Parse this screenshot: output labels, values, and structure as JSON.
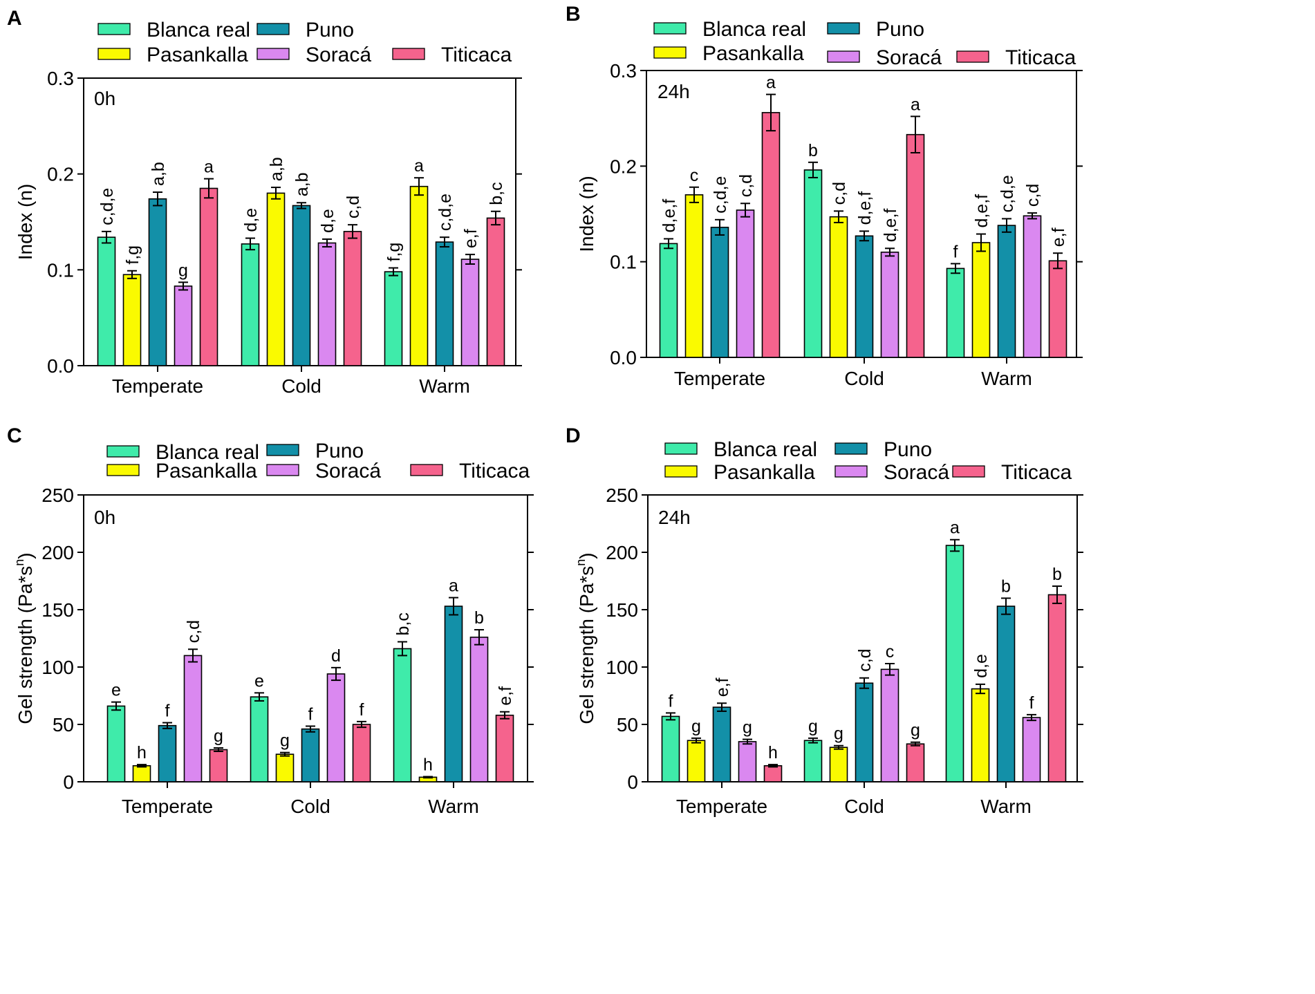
{
  "legend": {
    "labels": [
      "Blanca real",
      "Puno",
      "Pasankalla",
      "Soracá",
      "Titicaca"
    ]
  },
  "chart_data": [
    {
      "panel": "A",
      "type": "bar",
      "time_label": "0h",
      "ylabel": "Index (n)",
      "ylim": [
        0,
        0.3
      ],
      "yticks": [
        "0.0",
        "0.1",
        "0.2",
        "0.3"
      ],
      "categories": [
        "Temperate",
        "Cold",
        "Warm"
      ],
      "series": [
        {
          "name": "Blanca real",
          "color": "#3FEBAA",
          "values": [
            0.134,
            0.127,
            0.098
          ],
          "errors": [
            0.006,
            0.006,
            0.004
          ],
          "labels": [
            "c,d,e",
            "d,e",
            "f,g"
          ]
        },
        {
          "name": "Pasankalla",
          "color": "#FAFA00",
          "values": [
            0.095,
            0.18,
            0.187
          ],
          "errors": [
            0.004,
            0.006,
            0.009
          ],
          "labels": [
            "f,g",
            "a,b",
            "a"
          ]
        },
        {
          "name": "Puno",
          "color": "#1390A8",
          "values": [
            0.174,
            0.167,
            0.129
          ],
          "errors": [
            0.007,
            0.003,
            0.005
          ],
          "labels": [
            "a,b",
            "a,b",
            "c,d,e"
          ]
        },
        {
          "name": "Soracá",
          "color": "#DA88F0",
          "values": [
            0.083,
            0.128,
            0.111
          ],
          "errors": [
            0.004,
            0.004,
            0.005
          ],
          "labels": [
            "g",
            "d,e",
            "e,f"
          ]
        },
        {
          "name": "Titicaca",
          "color": "#F5638D",
          "values": [
            0.185,
            0.14,
            0.154
          ],
          "errors": [
            0.01,
            0.007,
            0.007
          ],
          "labels": [
            "a",
            "c,d",
            "b,c"
          ]
        }
      ]
    },
    {
      "panel": "B",
      "type": "bar",
      "time_label": "24h",
      "ylabel": "Index (n)",
      "ylim": [
        0,
        0.3
      ],
      "yticks": [
        "0.0",
        "0.1",
        "0.2",
        "0.3"
      ],
      "categories": [
        "Temperate",
        "Cold",
        "Warm"
      ],
      "series": [
        {
          "name": "Blanca real",
          "color": "#3FEBAA",
          "values": [
            0.119,
            0.196,
            0.093
          ],
          "errors": [
            0.005,
            0.008,
            0.005
          ],
          "labels": [
            "d,e,f",
            "b",
            "f"
          ]
        },
        {
          "name": "Pasankalla",
          "color": "#FAFA00",
          "values": [
            0.17,
            0.147,
            0.12
          ],
          "errors": [
            0.008,
            0.006,
            0.009
          ],
          "labels": [
            "c",
            "c,d",
            "d,e,f"
          ]
        },
        {
          "name": "Puno",
          "color": "#1390A8",
          "values": [
            0.136,
            0.127,
            0.138
          ],
          "errors": [
            0.008,
            0.005,
            0.007
          ],
          "labels": [
            "c,d,e",
            "d,e,f",
            "c,d,e"
          ]
        },
        {
          "name": "Soracá",
          "color": "#DA88F0",
          "values": [
            0.154,
            0.11,
            0.148
          ],
          "errors": [
            0.007,
            0.004,
            0.003
          ],
          "labels": [
            "c,d",
            "d,e,f",
            "c,d"
          ]
        },
        {
          "name": "Titicaca",
          "color": "#F5638D",
          "values": [
            0.256,
            0.233,
            0.101
          ],
          "errors": [
            0.019,
            0.019,
            0.008
          ],
          "labels": [
            "a",
            "a",
            "e,f"
          ]
        }
      ]
    },
    {
      "panel": "C",
      "type": "bar",
      "time_label": "0h",
      "ylabel": "Gel strength  (Pa*s",
      "ylabel_sup": "n",
      "ylabel_end": ")",
      "ylim": [
        0,
        250
      ],
      "yticks": [
        "0",
        "50",
        "100",
        "150",
        "200",
        "250"
      ],
      "categories": [
        "Temperate",
        "Cold",
        "Warm"
      ],
      "series": [
        {
          "name": "Blanca real",
          "color": "#3FEBAA",
          "values": [
            66,
            74,
            116
          ],
          "errors": [
            3.5,
            3.5,
            6
          ],
          "labels": [
            "e",
            "e",
            "b,c"
          ]
        },
        {
          "name": "Pasankalla",
          "color": "#FAFA00",
          "values": [
            14,
            24,
            4
          ],
          "errors": [
            1,
            1.5,
            0.5
          ],
          "labels": [
            "h",
            "g",
            "h"
          ]
        },
        {
          "name": "Puno",
          "color": "#1390A8",
          "values": [
            49,
            46,
            153
          ],
          "errors": [
            2.5,
            2.5,
            7.5
          ],
          "labels": [
            "f",
            "f",
            "a"
          ]
        },
        {
          "name": "Soracá",
          "color": "#DA88F0",
          "values": [
            110,
            94,
            126
          ],
          "errors": [
            5.5,
            5.5,
            6.5
          ],
          "labels": [
            "c,d",
            "d",
            "b"
          ]
        },
        {
          "name": "Titicaca",
          "color": "#F5638D",
          "values": [
            28,
            50,
            58
          ],
          "errors": [
            1.5,
            2.5,
            3
          ],
          "labels": [
            "g",
            "f",
            "e,f"
          ]
        }
      ]
    },
    {
      "panel": "D",
      "type": "bar",
      "time_label": "24h",
      "ylabel": "Gel strength  (Pa*s",
      "ylabel_sup": "n",
      "ylabel_end": ")",
      "ylim": [
        0,
        250
      ],
      "yticks": [
        "0",
        "50",
        "100",
        "150",
        "200",
        "250"
      ],
      "categories": [
        "Temperate",
        "Cold",
        "Warm"
      ],
      "series": [
        {
          "name": "Blanca real",
          "color": "#3FEBAA",
          "values": [
            57,
            36,
            206
          ],
          "errors": [
            3,
            2,
            5
          ],
          "labels": [
            "f",
            "g",
            "a"
          ]
        },
        {
          "name": "Pasankalla",
          "color": "#FAFA00",
          "values": [
            36,
            30,
            81
          ],
          "errors": [
            2,
            1.5,
            4
          ],
          "labels": [
            "g",
            "g",
            "d,e"
          ]
        },
        {
          "name": "Puno",
          "color": "#1390A8",
          "values": [
            65,
            86,
            153
          ],
          "errors": [
            3.5,
            4.5,
            7
          ],
          "labels": [
            "e,f",
            "c,d",
            "b"
          ]
        },
        {
          "name": "Soracá",
          "color": "#DA88F0",
          "values": [
            35,
            98,
            56
          ],
          "errors": [
            2,
            5,
            2.5
          ],
          "labels": [
            "g",
            "c",
            "f"
          ]
        },
        {
          "name": "Titicaca",
          "color": "#F5638D",
          "values": [
            14,
            33,
            163
          ],
          "errors": [
            1,
            1.5,
            7.5
          ],
          "labels": [
            "h",
            "g",
            "b"
          ]
        }
      ]
    }
  ]
}
